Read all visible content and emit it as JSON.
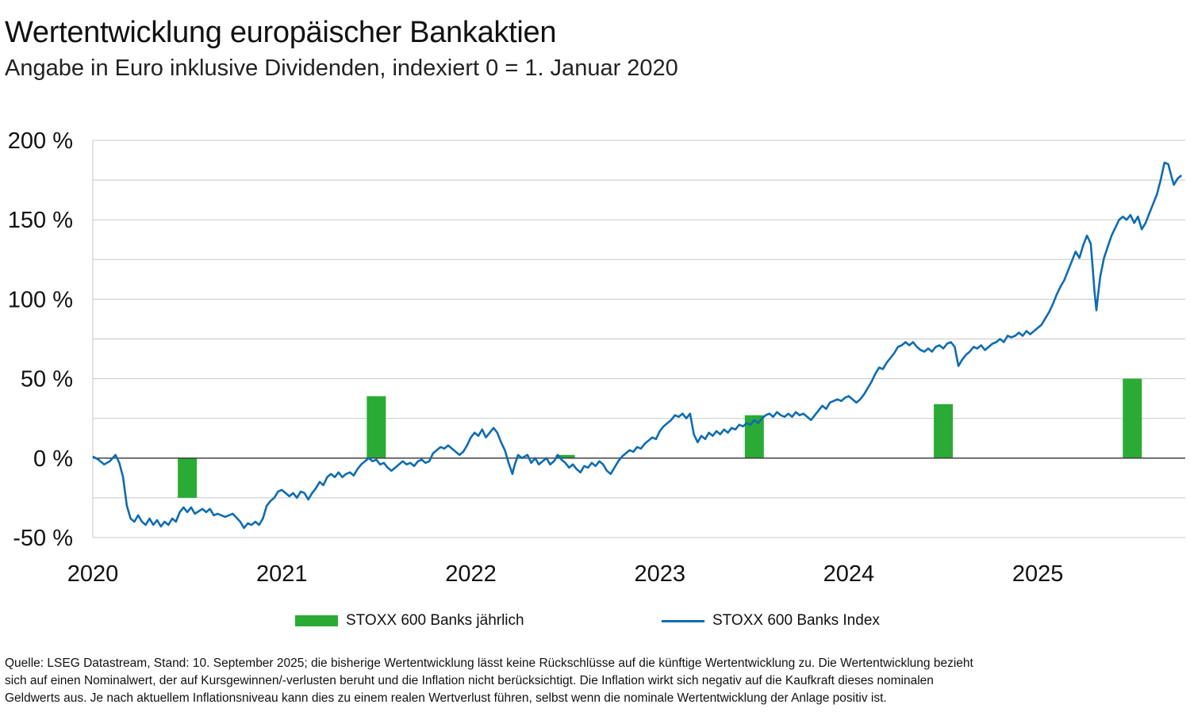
{
  "header": {
    "title": "Wertentwicklung europäischer Bankaktien",
    "subtitle": "Angabe in Euro inklusive Dividenden, indexiert 0 = 1. Januar 2020"
  },
  "legend": {
    "bar_label": "STOXX 600 Banks jährlich",
    "line_label": "STOXX 600 Banks Index"
  },
  "footnote": {
    "line1": "Quelle: LSEG Datastream, Stand: 10. September 2025; die bisherige Wertentwicklung lässt keine Rückschlüsse auf die künftige Wertentwicklung zu. Die Wertentwicklung bezieht",
    "line2": "sich auf einen Nominalwert, der auf Kursgewinnen/-verlusten beruht und die Inflation nicht berücksichtigt. Die Inflation wirkt sich negativ auf die Kaufkraft dieses nominalen",
    "line3": "Geldwerts aus. Je nach aktuellem Inflationsniveau kann dies zu einem realen Wertverlust führen, selbst wenn die nominale Wertentwicklung der Anlage positiv ist."
  },
  "colors": {
    "bar": "#2aab35",
    "line": "#0e6cb0",
    "grid": "#c8c8c8",
    "axis": "#333333"
  },
  "chart_data": {
    "type": "bar+line",
    "title": "Wertentwicklung europäischer Bankaktien",
    "subtitle": "Angabe in Euro inklusive Dividenden, indexiert 0 = 1. Januar 2020",
    "ylim": [
      -50,
      200
    ],
    "ytick_values": [
      -50,
      0,
      50,
      100,
      150,
      200
    ],
    "ytick_labels": [
      "-50 %",
      "0 %",
      "50 %",
      "100 %",
      "150 %",
      "200 %"
    ],
    "xlim": [
      2020.0,
      2025.78
    ],
    "xtick_values": [
      2020,
      2021,
      2022,
      2023,
      2024,
      2025
    ],
    "xtick_labels": [
      "2020",
      "2021",
      "2022",
      "2023",
      "2024",
      "2025"
    ],
    "grid": "horizontal, every 25 %",
    "legend_position": "bottom",
    "series": [
      {
        "name": "STOXX 600 Banks jährlich",
        "kind": "bar",
        "x": [
          2020.5,
          2021.5,
          2022.5,
          2023.5,
          2024.5,
          2025.5
        ],
        "values": [
          -25,
          39,
          2,
          27,
          34,
          50
        ]
      },
      {
        "name": "STOXX 600 Banks Index",
        "kind": "line",
        "points": [
          [
            2020.0,
            1
          ],
          [
            2020.03,
            -1
          ],
          [
            2020.06,
            -4
          ],
          [
            2020.09,
            -2
          ],
          [
            2020.12,
            2
          ],
          [
            2020.14,
            -3
          ],
          [
            2020.16,
            -12
          ],
          [
            2020.18,
            -30
          ],
          [
            2020.2,
            -38
          ],
          [
            2020.22,
            -40
          ],
          [
            2020.24,
            -36
          ],
          [
            2020.26,
            -40
          ],
          [
            2020.28,
            -42
          ],
          [
            2020.3,
            -38
          ],
          [
            2020.32,
            -42
          ],
          [
            2020.34,
            -39
          ],
          [
            2020.36,
            -43
          ],
          [
            2020.38,
            -40
          ],
          [
            2020.4,
            -42
          ],
          [
            2020.42,
            -38
          ],
          [
            2020.44,
            -40
          ],
          [
            2020.46,
            -34
          ],
          [
            2020.48,
            -31
          ],
          [
            2020.5,
            -34
          ],
          [
            2020.52,
            -31
          ],
          [
            2020.54,
            -35
          ],
          [
            2020.58,
            -32
          ],
          [
            2020.6,
            -34
          ],
          [
            2020.62,
            -32
          ],
          [
            2020.64,
            -36
          ],
          [
            2020.66,
            -35
          ],
          [
            2020.7,
            -37
          ],
          [
            2020.74,
            -35
          ],
          [
            2020.78,
            -40
          ],
          [
            2020.8,
            -44
          ],
          [
            2020.82,
            -41
          ],
          [
            2020.84,
            -42
          ],
          [
            2020.86,
            -40
          ],
          [
            2020.88,
            -42
          ],
          [
            2020.9,
            -38
          ],
          [
            2020.92,
            -30
          ],
          [
            2020.94,
            -27
          ],
          [
            2020.96,
            -25
          ],
          [
            2020.98,
            -21
          ],
          [
            2021.0,
            -20
          ],
          [
            2021.02,
            -22
          ],
          [
            2021.04,
            -24
          ],
          [
            2021.06,
            -22
          ],
          [
            2021.08,
            -25
          ],
          [
            2021.1,
            -21
          ],
          [
            2021.12,
            -22
          ],
          [
            2021.14,
            -26
          ],
          [
            2021.16,
            -22
          ],
          [
            2021.18,
            -19
          ],
          [
            2021.2,
            -15
          ],
          [
            2021.22,
            -17
          ],
          [
            2021.24,
            -12
          ],
          [
            2021.26,
            -10
          ],
          [
            2021.28,
            -12
          ],
          [
            2021.3,
            -9
          ],
          [
            2021.32,
            -12
          ],
          [
            2021.34,
            -10
          ],
          [
            2021.36,
            -9
          ],
          [
            2021.38,
            -11
          ],
          [
            2021.4,
            -7
          ],
          [
            2021.42,
            -4
          ],
          [
            2021.44,
            -2
          ],
          [
            2021.46,
            0
          ],
          [
            2021.48,
            -2
          ],
          [
            2021.5,
            -1
          ],
          [
            2021.52,
            -4
          ],
          [
            2021.54,
            -3
          ],
          [
            2021.56,
            -6
          ],
          [
            2021.58,
            -8
          ],
          [
            2021.6,
            -6
          ],
          [
            2021.62,
            -4
          ],
          [
            2021.64,
            -2
          ],
          [
            2021.66,
            -4
          ],
          [
            2021.68,
            -3
          ],
          [
            2021.7,
            -5
          ],
          [
            2021.72,
            -2
          ],
          [
            2021.74,
            -1
          ],
          [
            2021.76,
            -3
          ],
          [
            2021.78,
            -2
          ],
          [
            2021.8,
            3
          ],
          [
            2021.82,
            5
          ],
          [
            2021.84,
            7
          ],
          [
            2021.86,
            6
          ],
          [
            2021.88,
            8
          ],
          [
            2021.9,
            6
          ],
          [
            2021.92,
            4
          ],
          [
            2021.94,
            2
          ],
          [
            2021.96,
            4
          ],
          [
            2021.98,
            8
          ],
          [
            2022.0,
            13
          ],
          [
            2022.02,
            16
          ],
          [
            2022.04,
            14
          ],
          [
            2022.06,
            18
          ],
          [
            2022.08,
            13
          ],
          [
            2022.1,
            16
          ],
          [
            2022.12,
            19
          ],
          [
            2022.14,
            16
          ],
          [
            2022.16,
            10
          ],
          [
            2022.18,
            5
          ],
          [
            2022.2,
            -3
          ],
          [
            2022.22,
            -10
          ],
          [
            2022.23,
            -5
          ],
          [
            2022.25,
            2
          ],
          [
            2022.27,
            0
          ],
          [
            2022.3,
            2
          ],
          [
            2022.32,
            -3
          ],
          [
            2022.34,
            0
          ],
          [
            2022.36,
            -4
          ],
          [
            2022.38,
            -2
          ],
          [
            2022.4,
            0
          ],
          [
            2022.42,
            -4
          ],
          [
            2022.44,
            -2
          ],
          [
            2022.46,
            2
          ],
          [
            2022.48,
            -1
          ],
          [
            2022.5,
            -3
          ],
          [
            2022.52,
            -6
          ],
          [
            2022.54,
            -4
          ],
          [
            2022.56,
            -7
          ],
          [
            2022.58,
            -9
          ],
          [
            2022.6,
            -5
          ],
          [
            2022.62,
            -6
          ],
          [
            2022.64,
            -3
          ],
          [
            2022.66,
            -5
          ],
          [
            2022.68,
            -2
          ],
          [
            2022.7,
            -4
          ],
          [
            2022.72,
            -8
          ],
          [
            2022.74,
            -10
          ],
          [
            2022.76,
            -6
          ],
          [
            2022.78,
            -2
          ],
          [
            2022.8,
            1
          ],
          [
            2022.82,
            3
          ],
          [
            2022.84,
            5
          ],
          [
            2022.86,
            4
          ],
          [
            2022.88,
            7
          ],
          [
            2022.9,
            6
          ],
          [
            2022.92,
            9
          ],
          [
            2022.94,
            11
          ],
          [
            2022.96,
            13
          ],
          [
            2022.98,
            12
          ],
          [
            2023.0,
            17
          ],
          [
            2023.02,
            20
          ],
          [
            2023.04,
            22
          ],
          [
            2023.06,
            24
          ],
          [
            2023.08,
            27
          ],
          [
            2023.1,
            26
          ],
          [
            2023.12,
            28
          ],
          [
            2023.14,
            25
          ],
          [
            2023.16,
            28
          ],
          [
            2023.18,
            15
          ],
          [
            2023.2,
            10
          ],
          [
            2023.22,
            14
          ],
          [
            2023.24,
            12
          ],
          [
            2023.26,
            16
          ],
          [
            2023.28,
            14
          ],
          [
            2023.3,
            17
          ],
          [
            2023.32,
            15
          ],
          [
            2023.34,
            18
          ],
          [
            2023.36,
            16
          ],
          [
            2023.38,
            19
          ],
          [
            2023.4,
            18
          ],
          [
            2023.42,
            21
          ],
          [
            2023.44,
            20
          ],
          [
            2023.46,
            22
          ],
          [
            2023.48,
            21
          ],
          [
            2023.5,
            24
          ],
          [
            2023.52,
            22
          ],
          [
            2023.54,
            25
          ],
          [
            2023.56,
            27
          ],
          [
            2023.58,
            28
          ],
          [
            2023.6,
            26
          ],
          [
            2023.62,
            29
          ],
          [
            2023.64,
            27
          ],
          [
            2023.66,
            26
          ],
          [
            2023.68,
            28
          ],
          [
            2023.7,
            26
          ],
          [
            2023.72,
            29
          ],
          [
            2023.74,
            27
          ],
          [
            2023.76,
            28
          ],
          [
            2023.78,
            26
          ],
          [
            2023.8,
            24
          ],
          [
            2023.82,
            27
          ],
          [
            2023.84,
            30
          ],
          [
            2023.86,
            33
          ],
          [
            2023.88,
            31
          ],
          [
            2023.9,
            35
          ],
          [
            2023.92,
            36
          ],
          [
            2023.94,
            37
          ],
          [
            2023.96,
            36
          ],
          [
            2023.98,
            38
          ],
          [
            2024.0,
            39
          ],
          [
            2024.02,
            37
          ],
          [
            2024.04,
            35
          ],
          [
            2024.06,
            37
          ],
          [
            2024.08,
            40
          ],
          [
            2024.1,
            44
          ],
          [
            2024.12,
            48
          ],
          [
            2024.14,
            53
          ],
          [
            2024.16,
            57
          ],
          [
            2024.18,
            56
          ],
          [
            2024.2,
            60
          ],
          [
            2024.22,
            63
          ],
          [
            2024.24,
            66
          ],
          [
            2024.26,
            70
          ],
          [
            2024.28,
            71
          ],
          [
            2024.3,
            73
          ],
          [
            2024.32,
            71
          ],
          [
            2024.34,
            73
          ],
          [
            2024.36,
            70
          ],
          [
            2024.38,
            68
          ],
          [
            2024.4,
            67
          ],
          [
            2024.42,
            69
          ],
          [
            2024.44,
            67
          ],
          [
            2024.46,
            70
          ],
          [
            2024.48,
            71
          ],
          [
            2024.5,
            69
          ],
          [
            2024.52,
            72
          ],
          [
            2024.54,
            73
          ],
          [
            2024.56,
            70
          ],
          [
            2024.58,
            58
          ],
          [
            2024.6,
            62
          ],
          [
            2024.62,
            65
          ],
          [
            2024.64,
            67
          ],
          [
            2024.66,
            70
          ],
          [
            2024.68,
            69
          ],
          [
            2024.7,
            71
          ],
          [
            2024.72,
            68
          ],
          [
            2024.74,
            70
          ],
          [
            2024.76,
            72
          ],
          [
            2024.78,
            73
          ],
          [
            2024.8,
            75
          ],
          [
            2024.82,
            73
          ],
          [
            2024.84,
            77
          ],
          [
            2024.86,
            76
          ],
          [
            2024.88,
            77
          ],
          [
            2024.9,
            79
          ],
          [
            2024.92,
            77
          ],
          [
            2024.94,
            80
          ],
          [
            2024.96,
            78
          ],
          [
            2024.98,
            80
          ],
          [
            2025.0,
            82
          ],
          [
            2025.02,
            84
          ],
          [
            2025.04,
            88
          ],
          [
            2025.06,
            92
          ],
          [
            2025.08,
            97
          ],
          [
            2025.1,
            103
          ],
          [
            2025.12,
            108
          ],
          [
            2025.14,
            112
          ],
          [
            2025.16,
            118
          ],
          [
            2025.18,
            124
          ],
          [
            2025.2,
            130
          ],
          [
            2025.22,
            126
          ],
          [
            2025.24,
            134
          ],
          [
            2025.26,
            140
          ],
          [
            2025.28,
            135
          ],
          [
            2025.29,
            120
          ],
          [
            2025.3,
            105
          ],
          [
            2025.31,
            93
          ],
          [
            2025.32,
            104
          ],
          [
            2025.33,
            114
          ],
          [
            2025.35,
            126
          ],
          [
            2025.37,
            133
          ],
          [
            2025.39,
            140
          ],
          [
            2025.41,
            145
          ],
          [
            2025.43,
            150
          ],
          [
            2025.45,
            152
          ],
          [
            2025.47,
            150
          ],
          [
            2025.49,
            153
          ],
          [
            2025.51,
            148
          ],
          [
            2025.53,
            152
          ],
          [
            2025.55,
            144
          ],
          [
            2025.57,
            148
          ],
          [
            2025.59,
            154
          ],
          [
            2025.61,
            160
          ],
          [
            2025.63,
            166
          ],
          [
            2025.65,
            175
          ],
          [
            2025.67,
            186
          ],
          [
            2025.69,
            185
          ],
          [
            2025.71,
            176
          ],
          [
            2025.72,
            172
          ],
          [
            2025.74,
            176
          ],
          [
            2025.76,
            178
          ]
        ]
      }
    ]
  }
}
